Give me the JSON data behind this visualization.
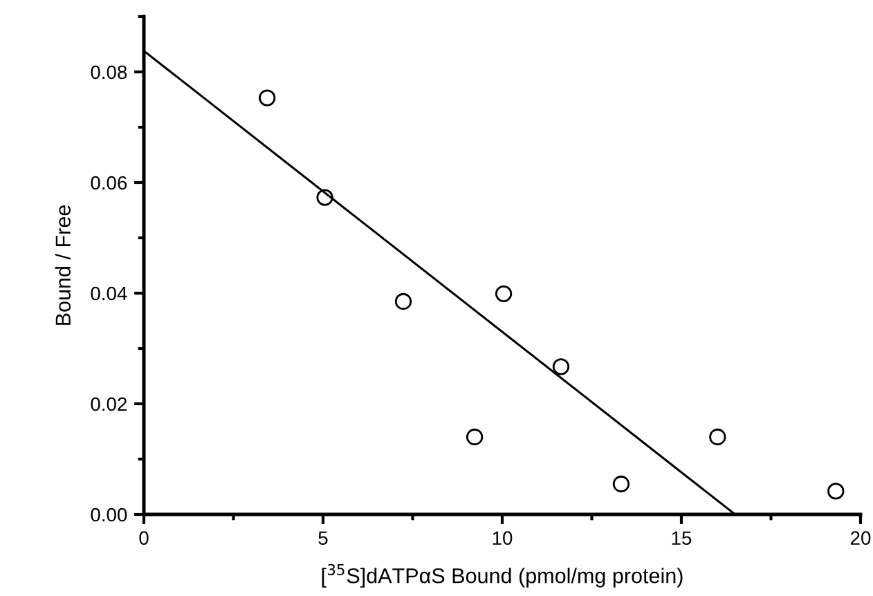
{
  "chart_data": {
    "type": "scatter",
    "xlabel": "[$^{35}$S]dATPαS Bound (pmol/mg protein)",
    "ylabel": "Bound / Free",
    "xlim": [
      0,
      20
    ],
    "xticks": [
      0,
      5,
      10,
      15,
      20
    ],
    "ylim": [
      0,
      0.09
    ],
    "yticks": [
      {
        "value": 0,
        "label": "0.00"
      },
      {
        "value": 0.02,
        "label": "0.02"
      },
      {
        "value": 0.04,
        "label": "0.04"
      },
      {
        "value": 0.06,
        "label": "0.06"
      },
      {
        "value": 0.08,
        "label": "0.08"
      }
    ],
    "grid": false,
    "legend": false,
    "marker": "circle",
    "series": [
      {
        "color": "#000000",
        "x": [
          3.44,
          5.05,
          7.24,
          9.23,
          10.04,
          11.64,
          13.32,
          16.01,
          19.31
        ],
        "values": [
          0.0753,
          0.0573,
          0.0385,
          0.014,
          0.0399,
          0.0267,
          0.0055,
          0.014,
          0.0042
        ]
      },
      {
        "type": "line",
        "color": "#000000",
        "line_style": "solid",
        "marker": "none",
        "x": [
          0,
          16.5
        ],
        "values": [
          0.0838,
          0
        ]
      }
    ]
  }
}
